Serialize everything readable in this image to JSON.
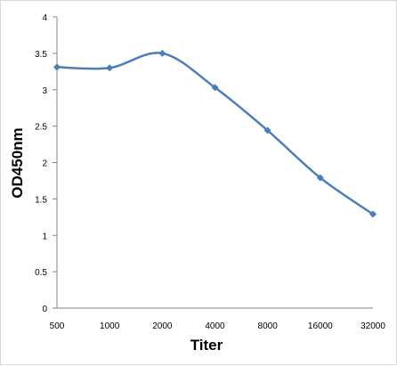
{
  "chart_data": {
    "type": "line",
    "title": "",
    "xlabel": "Titer",
    "ylabel": "OD450nm",
    "categories": [
      "500",
      "1000",
      "2000",
      "4000",
      "8000",
      "16000",
      "32000"
    ],
    "series": [
      {
        "values": [
          3.31,
          3.3,
          3.5,
          3.03,
          2.44,
          1.79,
          1.29
        ],
        "color": "#4a7ebb"
      }
    ],
    "yticks": [
      "0",
      "0.5",
      "1",
      "1.5",
      "2",
      "2.5",
      "3",
      "3.5",
      "4"
    ],
    "ylim": [
      0,
      4
    ],
    "grid": false,
    "legend": "none",
    "marker": "diamond",
    "smooth": true
  }
}
